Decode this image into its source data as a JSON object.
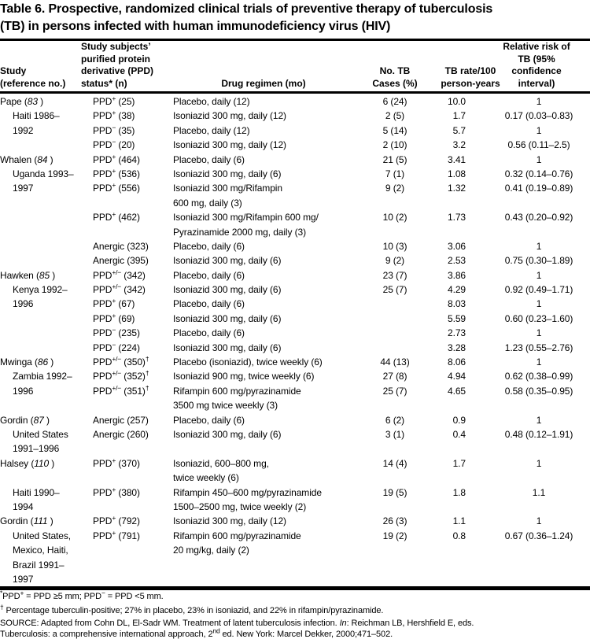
{
  "title_lines": [
    "Table 6. Prospective, randomized clinical trials of preventive therapy of tuberculosis",
    "(TB) in persons infected with human immunodeficiency virus (HIV)"
  ],
  "columns": {
    "study": [
      "Study",
      "(reference no.)"
    ],
    "ppd": [
      "Study subjects’",
      "purified protein",
      "derivative (PPD)",
      "status* (n)"
    ],
    "regimen": [
      "Drug regimen (mo)"
    ],
    "cases": [
      "No. TB",
      "Cases (%)"
    ],
    "rate": [
      "TB rate/100",
      "person-years"
    ],
    "risk": [
      "Relative risk of",
      "TB (95%",
      "confidence",
      "interval)"
    ]
  },
  "rows": [
    {
      "study": "Pape (<i>83</i> )",
      "indent": false,
      "ppd": "PPD<sup>+</sup> (25)",
      "regimen": "Placebo, daily (12)",
      "cases": "6 (24)",
      "rate": "10.0",
      "rr": "1"
    },
    {
      "study": "Haiti 1986–",
      "indent": true,
      "ppd": "PPD<sup>+</sup> (38)",
      "regimen": "Isoniazid 300 mg, daily (12)",
      "cases": "2 (5)",
      "rate": "1.7",
      "rr": "0.17 (0.03–0.83)"
    },
    {
      "study": "1992",
      "indent": true,
      "ppd": "PPD<sup>−</sup> (35)",
      "regimen": "Placebo, daily (12)",
      "cases": "5 (14)",
      "rate": "5.7",
      "rr": "1"
    },
    {
      "study": "",
      "indent": false,
      "ppd": "PPD<sup>−</sup> (20)",
      "regimen": "Isoniazid 300 mg, daily (12)",
      "cases": "2 (10)",
      "rate": "3.2",
      "rr": "0.56 (0.11–2.5)"
    },
    {
      "study": "Whalen (<i>84</i> )",
      "indent": false,
      "ppd": "PPD<sup>+</sup> (464)",
      "regimen": "Placebo, daily (6)",
      "cases": "21 (5)",
      "rate": "3.41",
      "rr": "1"
    },
    {
      "study": "Uganda 1993–",
      "indent": true,
      "ppd": "PPD<sup>+</sup> (536)",
      "regimen": "Isoniazid 300 mg, daily (6)",
      "cases": "7 (1)",
      "rate": "1.08",
      "rr": "0.32 (0.14–0.76)"
    },
    {
      "study": "1997",
      "indent": true,
      "ppd": "PPD<sup>+</sup> (556)",
      "regimen": "Isoniazid 300 mg/Rifampin",
      "cases": "9 (2)",
      "rate": "1.32",
      "rr": "0.41 (0.19–0.89)"
    },
    {
      "study": "",
      "indent": false,
      "ppd": "",
      "regimen": "600 mg, daily (3)",
      "cases": "",
      "rate": "",
      "rr": ""
    },
    {
      "study": "",
      "indent": false,
      "ppd": "PPD<sup>+</sup> (462)",
      "regimen": "Isoniazid 300 mg/Rifampin 600 mg/",
      "cases": "10 (2)",
      "rate": "1.73",
      "rr": "0.43 (0.20–0.92)"
    },
    {
      "study": "",
      "indent": false,
      "ppd": "",
      "regimen": "Pyrazinamide 2000 mg, daily (3)",
      "cases": "",
      "rate": "",
      "rr": ""
    },
    {
      "study": "",
      "indent": false,
      "ppd": "Anergic (323)",
      "regimen": "Placebo, daily (6)",
      "cases": "10 (3)",
      "rate": "3.06",
      "rr": "1"
    },
    {
      "study": "",
      "indent": false,
      "ppd": "Anergic (395)",
      "regimen": "Isoniazid 300 mg, daily (6)",
      "cases": "9 (2)",
      "rate": "2.53",
      "rr": "0.75 (0.30–1.89)"
    },
    {
      "study": "Hawken (<i>85</i> )",
      "indent": false,
      "ppd": "PPD<sup>+/−</sup> (342)",
      "regimen": "Placebo, daily (6)",
      "cases": "23 (7)",
      "rate": "3.86",
      "rr": "1"
    },
    {
      "study": "Kenya 1992–",
      "indent": true,
      "ppd": "PPD<sup>+/−</sup> (342)",
      "regimen": "Isoniazid 300 mg, daily (6)",
      "cases": "25 (7)",
      "rate": "4.29",
      "rr": "0.92 (0.49–1.71)"
    },
    {
      "study": "1996",
      "indent": true,
      "ppd": "PPD<sup>+</sup> (67)",
      "regimen": "Placebo, daily (6)",
      "cases": "",
      "rate": "8.03",
      "rr": "1"
    },
    {
      "study": "",
      "indent": false,
      "ppd": "PPD<sup>+</sup> (69)",
      "regimen": "Isoniazid 300 mg, daily (6)",
      "cases": "",
      "rate": "5.59",
      "rr": "0.60 (0.23–1.60)"
    },
    {
      "study": "",
      "indent": false,
      "ppd": "PPD<sup>−</sup> (235)",
      "regimen": "Placebo, daily (6)",
      "cases": "",
      "rate": "2.73",
      "rr": "1"
    },
    {
      "study": "",
      "indent": false,
      "ppd": "PPD<sup>−</sup> (224)",
      "regimen": "Isoniazid 300 mg, daily (6)",
      "cases": "",
      "rate": "3.28",
      "rr": "1.23 (0.55–2.76)"
    },
    {
      "study": "Mwinga (<i>86</i> )",
      "indent": false,
      "ppd": "PPD<sup>+/−</sup> (350)<sup>†</sup>",
      "regimen": "Placebo (isoniazid), twice weekly (6)",
      "cases": "44 (13)",
      "rate": "8.06",
      "rr": "1"
    },
    {
      "study": "Zambia 1992–",
      "indent": true,
      "ppd": "PPD<sup>+/−</sup> (352)<sup>†</sup>",
      "regimen": "Isoniazid 900 mg, twice weekly (6)",
      "cases": "27 (8)",
      "rate": "4.94",
      "rr": "0.62 (0.38–0.99)"
    },
    {
      "study": "1996",
      "indent": true,
      "ppd": "PPD<sup>+/−</sup> (351)<sup>†</sup>",
      "regimen": "Rifampin 600 mg/pyrazinamide",
      "cases": "25 (7)",
      "rate": "4.65",
      "rr": "0.58 (0.35–0.95)"
    },
    {
      "study": "",
      "indent": false,
      "ppd": "",
      "regimen": "3500 mg twice weekly (3)",
      "cases": "",
      "rate": "",
      "rr": ""
    },
    {
      "study": "Gordin (<i>87</i> )",
      "indent": false,
      "ppd": "Anergic (257)",
      "regimen": "Placebo, daily (6)",
      "cases": "6 (2)",
      "rate": "0.9",
      "rr": "1"
    },
    {
      "study": "United States",
      "indent": true,
      "ppd": "Anergic (260)",
      "regimen": "Isoniazid 300 mg, daily (6)",
      "cases": "3 (1)",
      "rate": "0.4",
      "rr": "0.48 (0.12–1.91)"
    },
    {
      "study": "1991–1996",
      "indent": true,
      "ppd": "",
      "regimen": "",
      "cases": "",
      "rate": "",
      "rr": ""
    },
    {
      "study": "Halsey (<i>110</i> )",
      "indent": false,
      "ppd": "PPD<sup>+</sup> (370)",
      "regimen": "Isoniazid, 600–800 mg,",
      "cases": "14 (4)",
      "rate": "1.7",
      "rr": "1"
    },
    {
      "study": "",
      "indent": false,
      "ppd": "",
      "regimen": "twice weekly (6)",
      "cases": "",
      "rate": "",
      "rr": ""
    },
    {
      "study": "Haiti 1990–",
      "indent": true,
      "ppd": "PPD<sup>+</sup> (380)",
      "regimen": "Rifampin 450–600 mg/pyrazinamide",
      "cases": "19 (5)",
      "rate": "1.8",
      "rr": "1.1"
    },
    {
      "study": "1994",
      "indent": true,
      "ppd": "",
      "regimen": "1500–2500 mg, twice weekly (2)",
      "cases": "",
      "rate": "",
      "rr": ""
    },
    {
      "study": "Gordin (<i>111</i> )",
      "indent": false,
      "ppd": "PPD<sup>+</sup> (792)",
      "regimen": "Isoniazid 300 mg, daily (12)",
      "cases": "26 (3)",
      "rate": "1.1",
      "rr": "1"
    },
    {
      "study": "United States,",
      "indent": true,
      "ppd": "PPD<sup>+</sup> (791)",
      "regimen": "Rifampin 600 mg/pyrazinamide",
      "cases": "19 (2)",
      "rate": "0.8",
      "rr": "0.67 (0.36–1.24)"
    },
    {
      "study": "Mexico, Haiti,",
      "indent": true,
      "ppd": "",
      "regimen": "20 mg/kg, daily (2)",
      "cases": "",
      "rate": "",
      "rr": ""
    },
    {
      "study": "Brazil 1991–",
      "indent": true,
      "ppd": "",
      "regimen": "",
      "cases": "",
      "rate": "",
      "rr": ""
    },
    {
      "study": "1997",
      "indent": true,
      "ppd": "",
      "regimen": "",
      "cases": "",
      "rate": "",
      "rr": ""
    }
  ],
  "footnotes": {
    "fn1": "<sup>*</sup>PPD<sup>+</sup> = PPD ≥5 mm; PPD<sup>−</sup> = PPD &lt;5 mm.",
    "fn2": "<sup>†</sup> Percentage tuberculin-positive; 27% in placebo, 23% in isoniazid, and 22% in rifampin/pyrazinamide.",
    "source_lines": [
      "SOURCE: Adapted from Cohn DL, El-Sadr WM. Treatment of latent tuberculosis infection. <i>In</i>: Reichman LB, Hershfield E, eds.",
      "Tuberculosis: a comprehensive international approach, 2<sup>nd</sup> ed. New York: Marcel Dekker, 2000;471–502."
    ]
  },
  "colors": {
    "text": "#000000",
    "background": "#ffffff",
    "rule": "#000000"
  }
}
